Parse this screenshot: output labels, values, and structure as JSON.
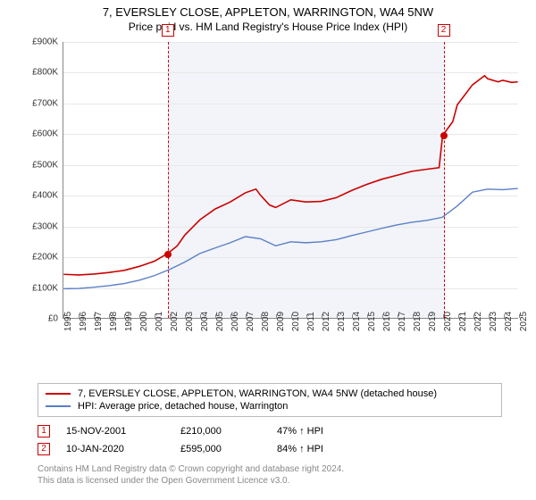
{
  "title": {
    "main": "7, EVERSLEY CLOSE, APPLETON, WARRINGTON, WA4 5NW",
    "sub": "Price paid vs. HM Land Registry's House Price Index (HPI)"
  },
  "chart": {
    "type": "line",
    "background_color": "#ffffff",
    "grid_color": "#e8e8e8",
    "axis_color": "#888888",
    "shaded_band_color": "#f2f4f9",
    "shaded_band_x": [
      2001.87,
      2020.03
    ],
    "xlim": [
      1995,
      2025
    ],
    "ylim": [
      0,
      900000
    ],
    "ytick_step": 100000,
    "yticks_labels": [
      "£0",
      "£100K",
      "£200K",
      "£300K",
      "£400K",
      "£500K",
      "£600K",
      "£700K",
      "£800K",
      "£900K"
    ],
    "xticks": [
      1995,
      1996,
      1997,
      1998,
      1999,
      2000,
      2001,
      2002,
      2003,
      2004,
      2005,
      2006,
      2007,
      2008,
      2009,
      2010,
      2011,
      2012,
      2013,
      2014,
      2015,
      2016,
      2017,
      2018,
      2019,
      2020,
      2021,
      2022,
      2023,
      2024,
      2025
    ],
    "series": [
      {
        "name": "property",
        "label": "7, EVERSLEY CLOSE, APPLETON, WARRINGTON, WA4 5NW (detached house)",
        "color": "#cc0000",
        "line_width": 1.6,
        "points": [
          [
            1995,
            142000
          ],
          [
            1996,
            140000
          ],
          [
            1997,
            143000
          ],
          [
            1998,
            148000
          ],
          [
            1999,
            155000
          ],
          [
            2000,
            168000
          ],
          [
            2001,
            185000
          ],
          [
            2001.87,
            210000
          ],
          [
            2002.5,
            235000
          ],
          [
            2003,
            270000
          ],
          [
            2004,
            320000
          ],
          [
            2005,
            355000
          ],
          [
            2006,
            378000
          ],
          [
            2007,
            408000
          ],
          [
            2007.7,
            420000
          ],
          [
            2008,
            400000
          ],
          [
            2008.6,
            368000
          ],
          [
            2009,
            360000
          ],
          [
            2010,
            385000
          ],
          [
            2011,
            378000
          ],
          [
            2012,
            380000
          ],
          [
            2013,
            392000
          ],
          [
            2014,
            415000
          ],
          [
            2015,
            435000
          ],
          [
            2016,
            452000
          ],
          [
            2017,
            465000
          ],
          [
            2018,
            478000
          ],
          [
            2019,
            485000
          ],
          [
            2019.8,
            490000
          ],
          [
            2020.03,
            595000
          ],
          [
            2020.7,
            640000
          ],
          [
            2021,
            695000
          ],
          [
            2022,
            760000
          ],
          [
            2022.8,
            790000
          ],
          [
            2023,
            780000
          ],
          [
            2023.7,
            770000
          ],
          [
            2024,
            775000
          ],
          [
            2024.6,
            768000
          ],
          [
            2025,
            770000
          ]
        ]
      },
      {
        "name": "hpi",
        "label": "HPI: Average price, detached house, Warrington",
        "color": "#5b7fc7",
        "line_width": 1.4,
        "points": [
          [
            1995,
            95000
          ],
          [
            1996,
            96000
          ],
          [
            1997,
            100000
          ],
          [
            1998,
            105000
          ],
          [
            1999,
            112000
          ],
          [
            2000,
            123000
          ],
          [
            2001,
            138000
          ],
          [
            2002,
            158000
          ],
          [
            2003,
            182000
          ],
          [
            2004,
            210000
          ],
          [
            2005,
            228000
          ],
          [
            2006,
            245000
          ],
          [
            2007,
            265000
          ],
          [
            2008,
            258000
          ],
          [
            2009,
            235000
          ],
          [
            2010,
            248000
          ],
          [
            2011,
            245000
          ],
          [
            2012,
            248000
          ],
          [
            2013,
            255000
          ],
          [
            2014,
            268000
          ],
          [
            2015,
            280000
          ],
          [
            2016,
            292000
          ],
          [
            2017,
            303000
          ],
          [
            2018,
            312000
          ],
          [
            2019,
            318000
          ],
          [
            2020,
            328000
          ],
          [
            2021,
            365000
          ],
          [
            2022,
            410000
          ],
          [
            2023,
            420000
          ],
          [
            2024,
            418000
          ],
          [
            2025,
            422000
          ]
        ]
      }
    ],
    "event_markers": [
      {
        "id": "1",
        "x": 2001.87,
        "y": 210000,
        "dash_color": "#cc0000"
      },
      {
        "id": "2",
        "x": 2020.03,
        "y": 595000,
        "dash_color": "#cc0000"
      }
    ]
  },
  "legend": {
    "items": [
      {
        "label": "7, EVERSLEY CLOSE, APPLETON, WARRINGTON, WA4 5NW (detached house)",
        "color": "#cc0000"
      },
      {
        "label": "HPI: Average price, detached house, Warrington",
        "color": "#5b7fc7"
      }
    ]
  },
  "sales": [
    {
      "id": "1",
      "date": "15-NOV-2001",
      "price": "£210,000",
      "pct": "47% ↑ HPI"
    },
    {
      "id": "2",
      "date": "10-JAN-2020",
      "price": "£595,000",
      "pct": "84% ↑ HPI"
    }
  ],
  "footer": {
    "line1": "Contains HM Land Registry data © Crown copyright and database right 2024.",
    "line2": "This data is licensed under the Open Government Licence v3.0."
  }
}
